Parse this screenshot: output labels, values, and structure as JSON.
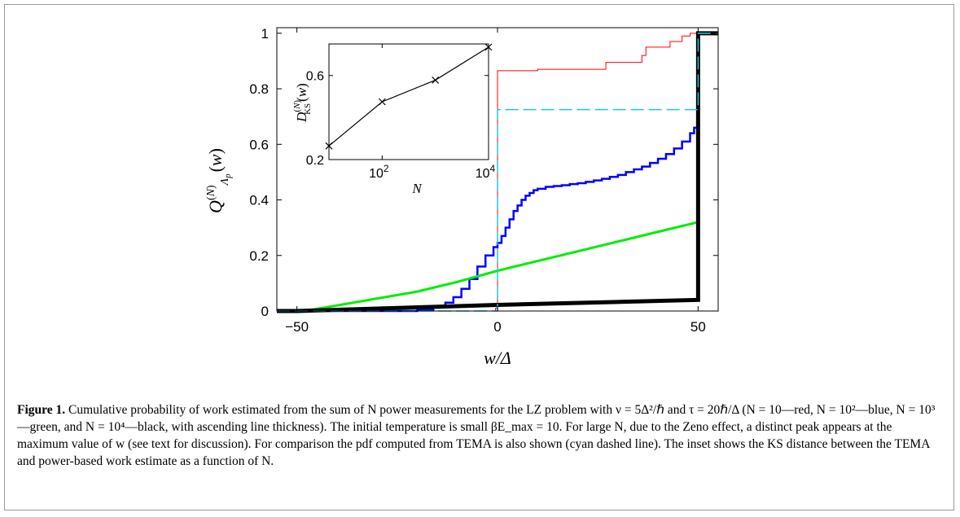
{
  "chart_data": [
    {
      "type": "line",
      "xlabel": "w/Δ",
      "ylabel": "Q(N)Λp(w)",
      "xlim": [
        -55,
        55
      ],
      "ylim": [
        0,
        1.02
      ],
      "xticks": [
        -50,
        0,
        50
      ],
      "xtick_labels": [
        "−50",
        "0",
        "50"
      ],
      "yticks": [
        0,
        0.2,
        0.4,
        0.6,
        0.8,
        1
      ],
      "ytick_labels": [
        "0",
        "0.2",
        "0.4",
        "0.6",
        "0.8",
        "1"
      ],
      "grid": false,
      "series": [
        {
          "color": "#ff0000",
          "stroke_width": 1,
          "dash": "",
          "step": true,
          "points": [
            [
              -55,
              0
            ],
            [
              -0.5,
              0
            ],
            [
              -0.5,
              0.01
            ],
            [
              0,
              0.01
            ],
            [
              0,
              0.865
            ],
            [
              10,
              0.865
            ],
            [
              10,
              0.87
            ],
            [
              27,
              0.87
            ],
            [
              27,
              0.895
            ],
            [
              36,
              0.895
            ],
            [
              36,
              0.92
            ],
            [
              37,
              0.92
            ],
            [
              37,
              0.95
            ],
            [
              43,
              0.95
            ],
            [
              43,
              0.97
            ],
            [
              46,
              0.97
            ],
            [
              46,
              0.99
            ],
            [
              48,
              0.99
            ],
            [
              48,
              1.0
            ],
            [
              55,
              1.0
            ]
          ]
        },
        {
          "color": "#0000ff",
          "stroke_width": 2.5,
          "dash": "",
          "step": true,
          "points": [
            [
              -55,
              0
            ],
            [
              -25,
              0
            ],
            [
              -20,
              0.005
            ],
            [
              -16,
              0.015
            ],
            [
              -13,
              0.03
            ],
            [
              -11,
              0.05
            ],
            [
              -9,
              0.08
            ],
            [
              -7,
              0.115
            ],
            [
              -5,
              0.16
            ],
            [
              -3,
              0.2
            ],
            [
              -1,
              0.23
            ],
            [
              0,
              0.245
            ],
            [
              1,
              0.27
            ],
            [
              2,
              0.3
            ],
            [
              3,
              0.33
            ],
            [
              4,
              0.36
            ],
            [
              5,
              0.38
            ],
            [
              6,
              0.4
            ],
            [
              7,
              0.415
            ],
            [
              8,
              0.425
            ],
            [
              9,
              0.435
            ],
            [
              10,
              0.44
            ],
            [
              12,
              0.447
            ],
            [
              14,
              0.45
            ],
            [
              16,
              0.453
            ],
            [
              18,
              0.457
            ],
            [
              20,
              0.46
            ],
            [
              22,
              0.465
            ],
            [
              24,
              0.47
            ],
            [
              26,
              0.476
            ],
            [
              28,
              0.483
            ],
            [
              30,
              0.49
            ],
            [
              32,
              0.5
            ],
            [
              34,
              0.51
            ],
            [
              36,
              0.52
            ],
            [
              38,
              0.533
            ],
            [
              40,
              0.548
            ],
            [
              42,
              0.565
            ],
            [
              44,
              0.585
            ],
            [
              46,
              0.61
            ],
            [
              48,
              0.64
            ],
            [
              49,
              0.66
            ],
            [
              50,
              0.69
            ],
            [
              50,
              1.0
            ],
            [
              55,
              1.0
            ]
          ]
        },
        {
          "color": "#00ee00",
          "stroke_width": 3,
          "dash": "",
          "step": false,
          "points": [
            [
              -55,
              0
            ],
            [
              -47,
              0.003
            ],
            [
              -40,
              0.02
            ],
            [
              -30,
              0.045
            ],
            [
              -20,
              0.07
            ],
            [
              -10,
              0.105
            ],
            [
              0,
              0.145
            ],
            [
              10,
              0.18
            ],
            [
              20,
              0.215
            ],
            [
              30,
              0.25
            ],
            [
              40,
              0.285
            ],
            [
              50,
              0.32
            ]
          ]
        },
        {
          "color": "#000000",
          "stroke_width": 5,
          "dash": "",
          "step": false,
          "points": [
            [
              -55,
              0
            ],
            [
              -50,
              0
            ],
            [
              0,
              0.022
            ],
            [
              50,
              0.04
            ],
            [
              50,
              1.0
            ],
            [
              55,
              1.0
            ]
          ]
        },
        {
          "color": "#22c8d8",
          "stroke_width": 1.5,
          "dash": "16 6",
          "step": false,
          "points": [
            [
              -55,
              0
            ],
            [
              0,
              0
            ],
            [
              0,
              0.725
            ],
            [
              50,
              0.725
            ],
            [
              50,
              1.0
            ],
            [
              55,
              1.0
            ]
          ]
        }
      ]
    },
    {
      "type": "line",
      "scale_x": "log",
      "xlabel": "N",
      "ylabel": "D(N)KS(w)",
      "xlim": [
        10,
        10000
      ],
      "ylim": [
        0.2,
        0.75
      ],
      "xticks": [
        100,
        10000
      ],
      "xtick_labels": [
        "10",
        "10"
      ],
      "xtick_exponents": [
        "2",
        "4"
      ],
      "yticks": [
        0.2,
        0.6
      ],
      "ytick_labels": [
        "0.2",
        "0.6"
      ],
      "grid": false,
      "marker": "x",
      "x": [
        10,
        100,
        1000,
        10000
      ],
      "y": [
        0.265,
        0.475,
        0.578,
        0.735
      ]
    }
  ],
  "caption": {
    "label": "Figure 1.",
    "text": "Cumulative probability of work estimated from the sum of N power measurements for the LZ problem with ν = 5Δ²/ℏ and τ = 20ℏ/Δ (N = 10—red, N = 10²—blue, N = 10³—green, and N = 10⁴—black, with ascending line thickness). The initial temperature is small βE_max = 10. For large N, due to the Zeno effect, a distinct peak appears at the maximum value of w (see text for discussion). For comparison the pdf computed from TEMA is also shown (cyan dashed line). The inset shows the KS distance between the TEMA and power-based work estimate as a function of N."
  }
}
